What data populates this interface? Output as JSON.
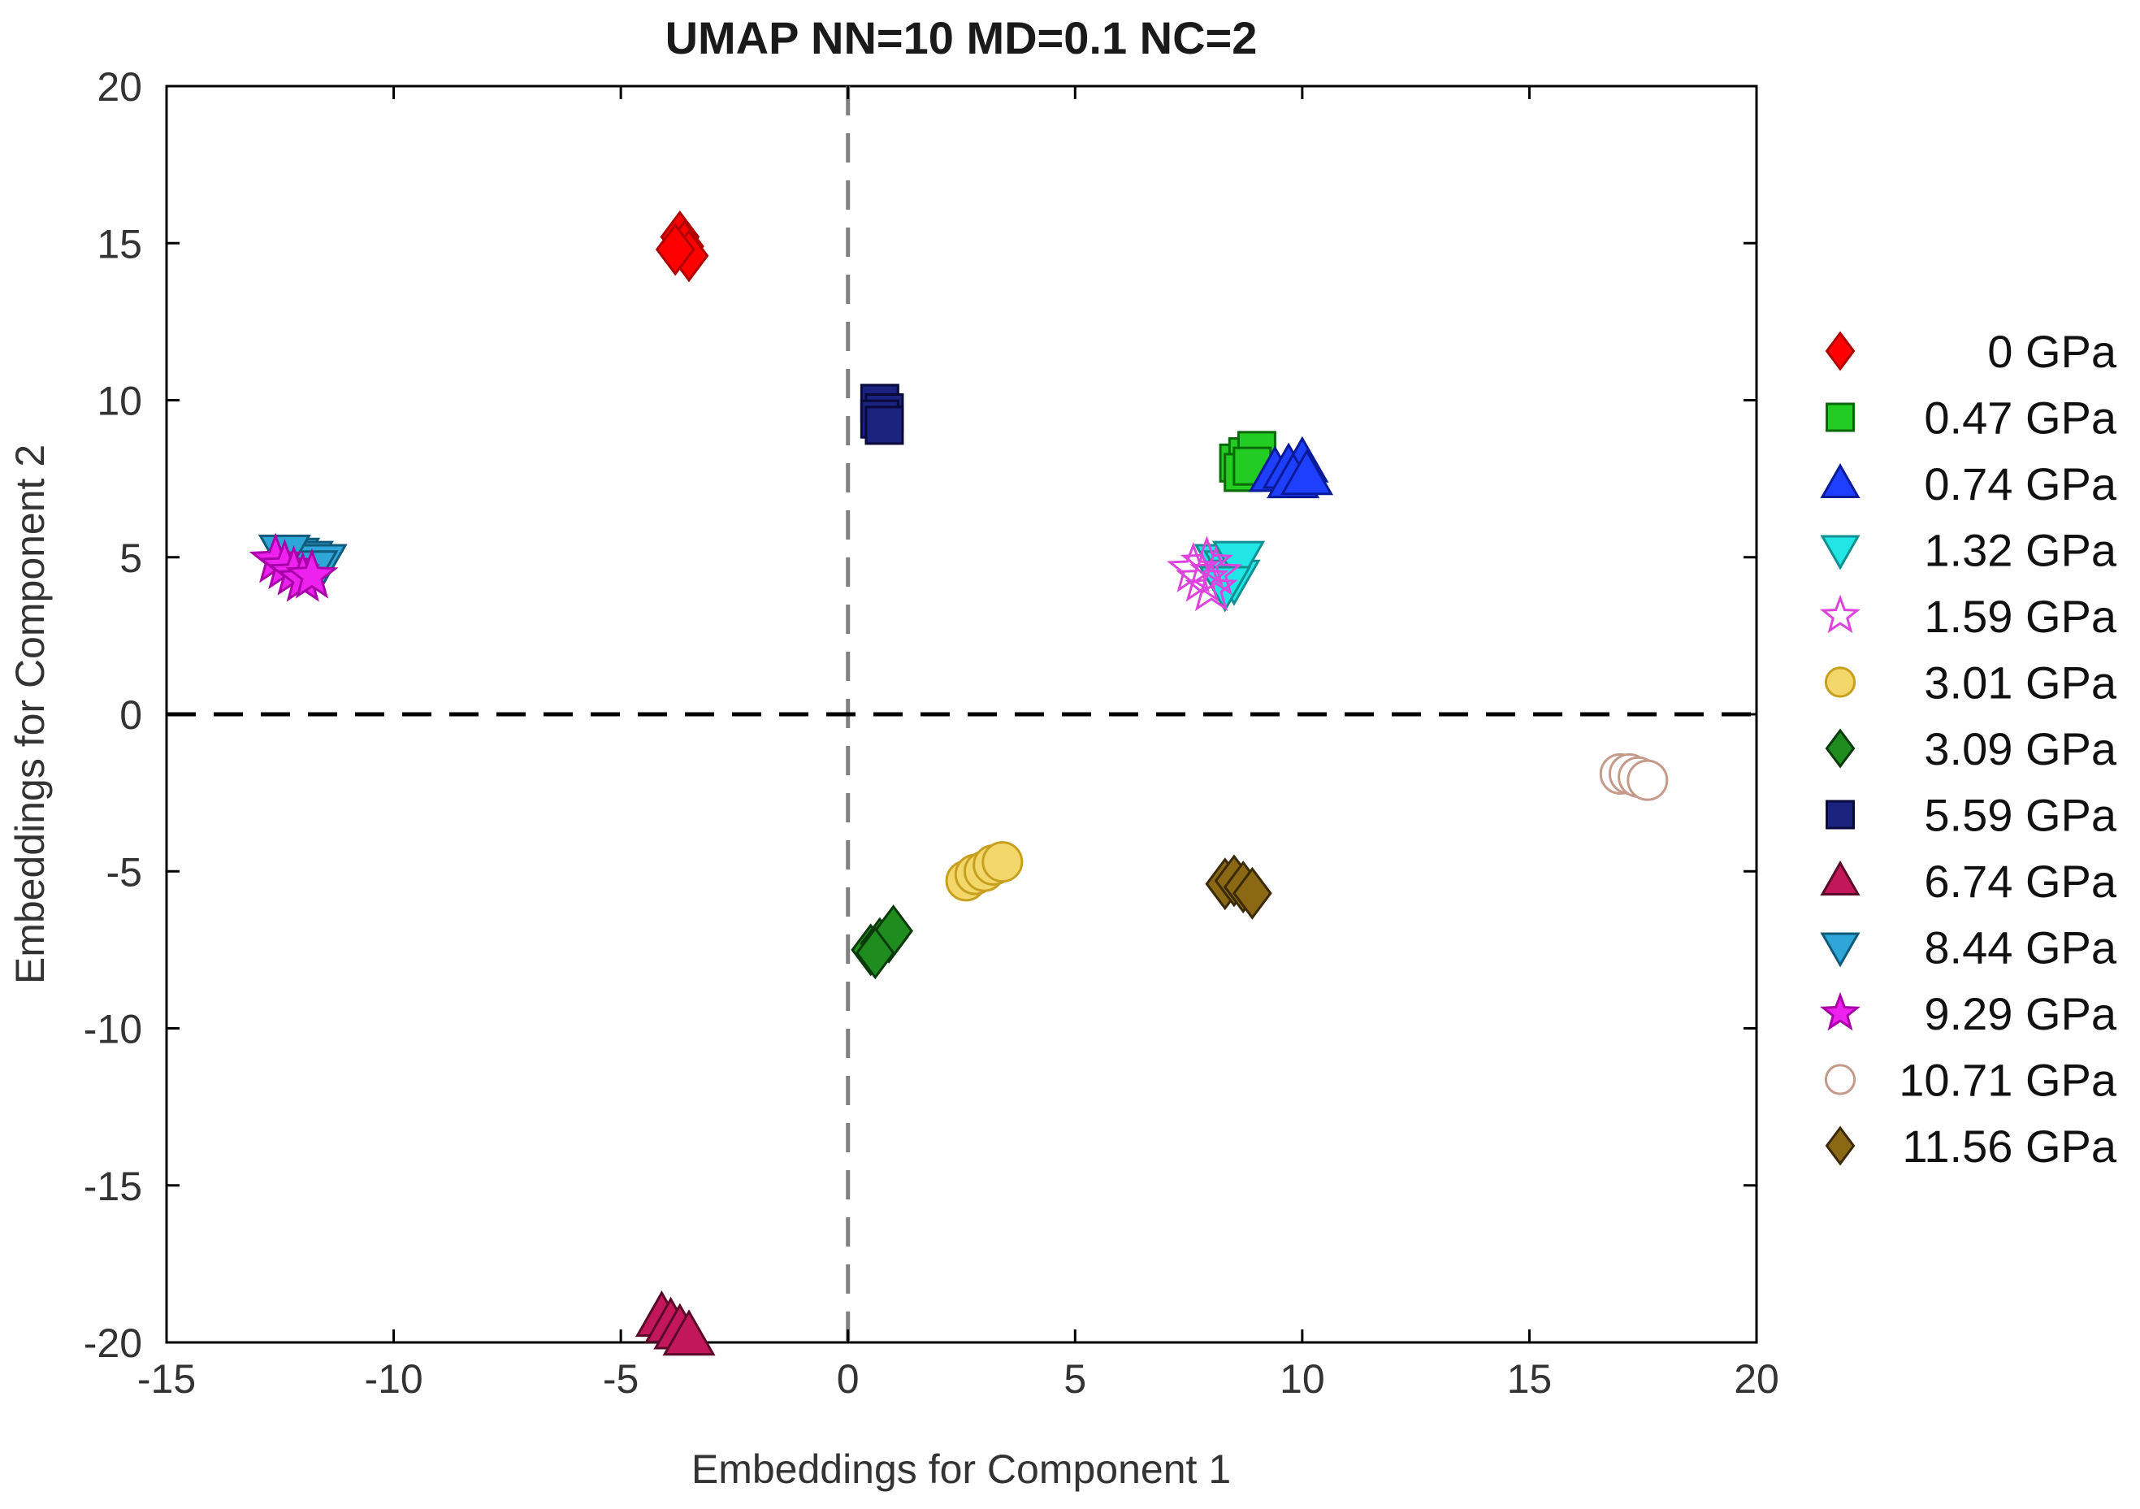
{
  "chart_data": {
    "type": "scatter",
    "title": "UMAP NN=10 MD=0.1 NC=2",
    "xlabel": "Embeddings for Component 1",
    "ylabel": "Embeddings for Component 2",
    "xlim": [
      -15,
      20
    ],
    "ylim": [
      -20,
      20
    ],
    "xticks": [
      -15,
      -10,
      -5,
      0,
      5,
      10,
      15,
      20
    ],
    "yticks": [
      -20,
      -15,
      -10,
      -5,
      0,
      5,
      10,
      15,
      20
    ],
    "reference_lines": [
      {
        "orientation": "vertical",
        "value": 0,
        "style": "dashed",
        "color": "#808080"
      },
      {
        "orientation": "horizontal",
        "value": 0,
        "style": "dashed",
        "color": "#000000"
      }
    ],
    "legend_position": "right-outside",
    "series": [
      {
        "name": "0 GPa",
        "marker": "diamond",
        "fill": "#ff0000",
        "stroke": "#b00000",
        "points": [
          [
            -3.7,
            15.2
          ],
          [
            -3.6,
            14.9
          ],
          [
            -3.5,
            14.6
          ],
          [
            -3.8,
            14.8
          ]
        ]
      },
      {
        "name": "0.47 GPa",
        "marker": "square",
        "fill": "#22cc22",
        "stroke": "#0a6a0a",
        "points": [
          [
            8.6,
            8.0
          ],
          [
            8.8,
            8.2
          ],
          [
            9.0,
            8.4
          ],
          [
            8.7,
            7.7
          ],
          [
            8.9,
            7.9
          ]
        ]
      },
      {
        "name": "0.74 GPa",
        "marker": "triangle-up",
        "fill": "#1f3fff",
        "stroke": "#0a1a9a",
        "points": [
          [
            9.4,
            7.7
          ],
          [
            9.7,
            7.8
          ],
          [
            10.0,
            8.0
          ],
          [
            9.8,
            7.5
          ],
          [
            10.1,
            7.6
          ]
        ]
      },
      {
        "name": "1.32 GPa",
        "marker": "triangle-down",
        "fill": "#22e6e6",
        "stroke": "#109090",
        "points": [
          [
            8.2,
            4.8
          ],
          [
            8.4,
            4.6
          ],
          [
            8.5,
            4.3
          ],
          [
            8.6,
            4.9
          ],
          [
            8.3,
            4.1
          ]
        ]
      },
      {
        "name": "1.59 GPa",
        "marker": "star-open",
        "fill": "none",
        "stroke": "#dd44dd",
        "points": [
          [
            7.6,
            4.6
          ],
          [
            7.8,
            4.3
          ],
          [
            8.0,
            4.0
          ],
          [
            7.9,
            4.8
          ],
          [
            8.1,
            4.5
          ]
        ]
      },
      {
        "name": "3.01 GPa",
        "marker": "circle",
        "fill": "#f3d76a",
        "stroke": "#c8a020",
        "points": [
          [
            2.6,
            -5.3
          ],
          [
            2.8,
            -5.1
          ],
          [
            3.0,
            -5.0
          ],
          [
            3.2,
            -4.8
          ],
          [
            3.4,
            -4.7
          ]
        ]
      },
      {
        "name": "3.09 GPa",
        "marker": "diamond",
        "fill": "#1e8c1e",
        "stroke": "#0a3a0a",
        "points": [
          [
            0.5,
            -7.5
          ],
          [
            0.7,
            -7.3
          ],
          [
            0.9,
            -7.1
          ],
          [
            1.0,
            -6.9
          ],
          [
            0.6,
            -7.6
          ]
        ]
      },
      {
        "name": "5.59 GPa",
        "marker": "square",
        "fill": "#1a237e",
        "stroke": "#0a0a3a",
        "points": [
          [
            0.7,
            9.9
          ],
          [
            0.8,
            9.6
          ],
          [
            0.7,
            9.4
          ],
          [
            0.8,
            9.2
          ]
        ]
      },
      {
        "name": "6.74 GPa",
        "marker": "triangle-up",
        "fill": "#c2185b",
        "stroke": "#5a0a28",
        "points": [
          [
            -4.1,
            -19.2
          ],
          [
            -3.9,
            -19.4
          ],
          [
            -3.7,
            -19.6
          ],
          [
            -3.5,
            -19.8
          ]
        ]
      },
      {
        "name": "8.44 GPa",
        "marker": "triangle-down",
        "fill": "#2ea6d8",
        "stroke": "#105a7a",
        "points": [
          [
            -12.2,
            5.0
          ],
          [
            -11.9,
            4.9
          ],
          [
            -11.6,
            4.8
          ],
          [
            -11.8,
            4.6
          ],
          [
            -12.4,
            5.1
          ]
        ]
      },
      {
        "name": "9.29 GPa",
        "marker": "star",
        "fill": "#ee22ee",
        "stroke": "#aa00aa",
        "points": [
          [
            -12.6,
            4.9
          ],
          [
            -12.4,
            4.7
          ],
          [
            -12.2,
            4.5
          ],
          [
            -12.0,
            4.3
          ],
          [
            -11.8,
            4.4
          ]
        ]
      },
      {
        "name": "10.71 GPa",
        "marker": "circle-open",
        "fill": "#ffffff",
        "stroke": "#c49a8a",
        "points": [
          [
            17.0,
            -1.9
          ],
          [
            17.2,
            -1.9
          ],
          [
            17.4,
            -2.0
          ],
          [
            17.6,
            -2.1
          ]
        ]
      },
      {
        "name": "11.56 GPa",
        "marker": "diamond",
        "fill": "#8b6914",
        "stroke": "#3a2a06",
        "points": [
          [
            8.3,
            -5.4
          ],
          [
            8.5,
            -5.3
          ],
          [
            8.7,
            -5.5
          ],
          [
            8.9,
            -5.7
          ]
        ]
      }
    ]
  }
}
